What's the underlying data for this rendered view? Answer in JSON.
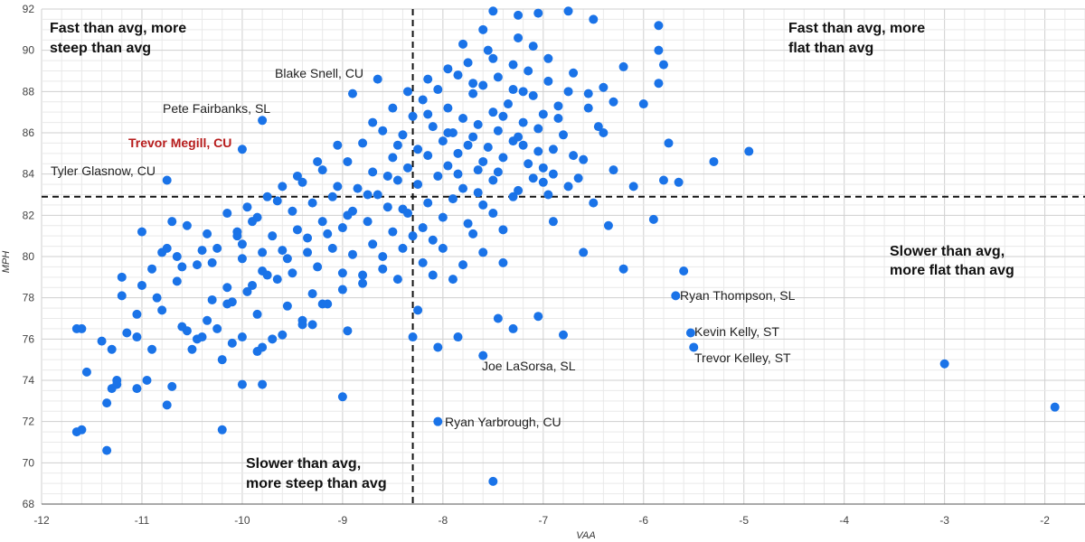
{
  "chart_data": {
    "type": "scatter",
    "title": "",
    "xlabel": "VAA",
    "ylabel": "MPH",
    "xlim": [
      -12,
      -1.6
    ],
    "ylim": [
      68,
      92
    ],
    "xticks": [
      -12,
      -11,
      -10,
      -9,
      -8,
      -7,
      -6,
      -5,
      -4,
      -3,
      -2
    ],
    "yticks": [
      68,
      70,
      72,
      74,
      76,
      78,
      80,
      82,
      84,
      86,
      88,
      90,
      92
    ],
    "grid": true,
    "point_color": "#1a73e8",
    "highlight_color": "#b71c1c",
    "reference_lines": {
      "avg_vaa": -8.3,
      "avg_mph": 82.9
    },
    "quadrant_labels": [
      {
        "lines": [
          "Fast than avg, more",
          "steep than avg"
        ]
      },
      {
        "lines": [
          "Fast than avg, more",
          "flat than avg"
        ]
      },
      {
        "lines": [
          "Slower than avg,",
          "more flat than avg"
        ]
      },
      {
        "lines": [
          "Slower than avg,",
          "more steep than avg"
        ]
      }
    ],
    "labeled_points": [
      {
        "name": "Blake Snell, CU",
        "x": -8.65,
        "y": 88.6,
        "highlight": false
      },
      {
        "name": "Pete Fairbanks, SL",
        "x": -9.8,
        "y": 86.6,
        "highlight": false
      },
      {
        "name": "Trevor Megill, CU",
        "x": -10.0,
        "y": 85.2,
        "highlight": true
      },
      {
        "name": "Tyler Glasnow, CU",
        "x": -10.75,
        "y": 83.7,
        "highlight": false
      },
      {
        "name": "Ryan Thompson, SL",
        "x": -5.68,
        "y": 78.1,
        "highlight": false
      },
      {
        "name": "Kevin Kelly, ST",
        "x": -5.53,
        "y": 76.3,
        "highlight": false
      },
      {
        "name": "Trevor Kelley, ST",
        "x": -5.5,
        "y": 75.6,
        "highlight": false
      },
      {
        "name": "Joe LaSorsa, SL",
        "x": -7.65,
        "y": 75.2,
        "highlight": false
      },
      {
        "name": "Ryan Yarbrough, CU",
        "x": -8.05,
        "y": 72.0,
        "highlight": false
      }
    ],
    "points": [
      [
        -11.65,
        76.5
      ],
      [
        -11.6,
        76.5
      ],
      [
        -11.55,
        74.4
      ],
      [
        -11.65,
        71.5
      ],
      [
        -11.4,
        75.9
      ],
      [
        -11.35,
        72.9
      ],
      [
        -11.3,
        73.6
      ],
      [
        -11.25,
        74.0
      ],
      [
        -11.25,
        73.8
      ],
      [
        -11.3,
        75.5
      ],
      [
        -11.2,
        78.1
      ],
      [
        -11.2,
        79.0
      ],
      [
        -11.15,
        76.3
      ],
      [
        -11.05,
        76.1
      ],
      [
        -11.05,
        73.6
      ],
      [
        -11.0,
        81.2
      ],
      [
        -11.0,
        78.6
      ],
      [
        -10.95,
        74.0
      ],
      [
        -10.9,
        75.5
      ],
      [
        -10.9,
        79.4
      ],
      [
        -10.8,
        80.2
      ],
      [
        -10.8,
        77.4
      ],
      [
        -10.75,
        80.4
      ],
      [
        -10.75,
        72.8
      ],
      [
        -10.7,
        81.7
      ],
      [
        -10.7,
        73.7
      ],
      [
        -10.65,
        80.0
      ],
      [
        -10.6,
        76.6
      ],
      [
        -10.6,
        79.5
      ],
      [
        -10.55,
        81.5
      ],
      [
        -10.5,
        75.5
      ],
      [
        -10.45,
        76.0
      ],
      [
        -10.4,
        76.1
      ],
      [
        -10.4,
        80.3
      ],
      [
        -10.35,
        81.1
      ],
      [
        -10.3,
        77.9
      ],
      [
        -10.3,
        79.7
      ],
      [
        -10.25,
        76.5
      ],
      [
        -10.2,
        75.0
      ],
      [
        -10.15,
        78.5
      ],
      [
        -10.15,
        82.1
      ],
      [
        -10.1,
        77.8
      ],
      [
        -10.1,
        75.8
      ],
      [
        -10.05,
        81.2
      ],
      [
        -10.0,
        79.9
      ],
      [
        -10.0,
        76.1
      ],
      [
        -10.0,
        80.6
      ],
      [
        -9.95,
        82.4
      ],
      [
        -9.9,
        78.6
      ],
      [
        -9.9,
        81.7
      ],
      [
        -9.85,
        77.2
      ],
      [
        -9.85,
        75.4
      ],
      [
        -9.8,
        80.2
      ],
      [
        -9.8,
        79.3
      ],
      [
        -9.75,
        82.9
      ],
      [
        -9.7,
        76.0
      ],
      [
        -9.7,
        81.0
      ],
      [
        -9.65,
        78.9
      ],
      [
        -9.6,
        83.4
      ],
      [
        -9.6,
        80.3
      ],
      [
        -9.55,
        77.6
      ],
      [
        -9.5,
        82.2
      ],
      [
        -9.5,
        79.2
      ],
      [
        -9.45,
        81.3
      ],
      [
        -9.4,
        76.7
      ],
      [
        -9.4,
        83.6
      ],
      [
        -9.35,
        80.9
      ],
      [
        -9.3,
        78.2
      ],
      [
        -9.3,
        82.6
      ],
      [
        -9.25,
        79.5
      ],
      [
        -9.2,
        84.2
      ],
      [
        -9.2,
        81.7
      ],
      [
        -9.15,
        77.7
      ],
      [
        -9.1,
        80.4
      ],
      [
        -9.1,
        82.9
      ],
      [
        -9.05,
        83.4
      ],
      [
        -9.0,
        79.2
      ],
      [
        -9.0,
        81.4
      ],
      [
        -8.95,
        84.6
      ],
      [
        -8.95,
        76.4
      ],
      [
        -8.9,
        82.2
      ],
      [
        -8.9,
        80.1
      ],
      [
        -8.85,
        83.3
      ],
      [
        -8.8,
        78.7
      ],
      [
        -8.8,
        85.5
      ],
      [
        -8.75,
        81.7
      ],
      [
        -8.7,
        84.1
      ],
      [
        -8.7,
        80.6
      ],
      [
        -8.65,
        83.0
      ],
      [
        -8.6,
        79.4
      ],
      [
        -8.6,
        86.1
      ],
      [
        -8.55,
        82.4
      ],
      [
        -8.5,
        84.8
      ],
      [
        -8.5,
        81.2
      ],
      [
        -8.45,
        83.7
      ],
      [
        -8.45,
        78.9
      ],
      [
        -8.4,
        85.9
      ],
      [
        -8.4,
        80.4
      ],
      [
        -8.35,
        82.1
      ],
      [
        -8.35,
        84.3
      ],
      [
        -8.3,
        86.8
      ],
      [
        -8.3,
        81.0
      ],
      [
        -8.25,
        83.5
      ],
      [
        -8.25,
        85.2
      ],
      [
        -8.2,
        79.7
      ],
      [
        -8.2,
        87.6
      ],
      [
        -8.15,
        82.6
      ],
      [
        -8.15,
        84.9
      ],
      [
        -8.1,
        86.3
      ],
      [
        -8.1,
        80.8
      ],
      [
        -8.05,
        83.9
      ],
      [
        -8.05,
        88.1
      ],
      [
        -8.0,
        85.6
      ],
      [
        -8.0,
        81.9
      ],
      [
        -7.95,
        87.2
      ],
      [
        -7.95,
        84.4
      ],
      [
        -7.9,
        86.0
      ],
      [
        -7.9,
        82.8
      ],
      [
        -7.85,
        88.8
      ],
      [
        -7.85,
        85.0
      ],
      [
        -7.8,
        83.3
      ],
      [
        -7.8,
        86.7
      ],
      [
        -7.75,
        89.4
      ],
      [
        -7.75,
        81.6
      ],
      [
        -7.7,
        85.8
      ],
      [
        -7.7,
        87.9
      ],
      [
        -7.65,
        84.2
      ],
      [
        -7.65,
        86.4
      ],
      [
        -7.6,
        88.3
      ],
      [
        -7.6,
        82.5
      ],
      [
        -7.55,
        85.3
      ],
      [
        -7.55,
        90.0
      ],
      [
        -7.5,
        87.0
      ],
      [
        -7.5,
        83.7
      ],
      [
        -7.45,
        86.1
      ],
      [
        -7.45,
        88.7
      ],
      [
        -7.4,
        84.8
      ],
      [
        -7.4,
        81.3
      ],
      [
        -7.35,
        87.4
      ],
      [
        -7.3,
        85.6
      ],
      [
        -7.3,
        89.3
      ],
      [
        -7.25,
        83.2
      ],
      [
        -7.2,
        86.5
      ],
      [
        -7.2,
        88.0
      ],
      [
        -7.15,
        84.5
      ],
      [
        -7.1,
        87.8
      ],
      [
        -7.1,
        90.2
      ],
      [
        -7.05,
        85.1
      ],
      [
        -7.0,
        86.9
      ],
      [
        -7.0,
        83.6
      ],
      [
        -6.95,
        88.5
      ],
      [
        -6.9,
        84.0
      ],
      [
        -6.85,
        87.3
      ],
      [
        -6.8,
        85.9
      ],
      [
        -6.75,
        83.4
      ],
      [
        -6.7,
        88.9
      ],
      [
        -6.6,
        84.7
      ],
      [
        -6.55,
        87.9
      ],
      [
        -6.5,
        82.6
      ],
      [
        -6.45,
        86.3
      ],
      [
        -6.4,
        88.2
      ],
      [
        -6.35,
        81.5
      ],
      [
        -6.3,
        84.2
      ],
      [
        -6.2,
        89.2
      ],
      [
        -6.1,
        83.4
      ],
      [
        -6.0,
        87.4
      ],
      [
        -5.9,
        81.8
      ],
      [
        -5.8,
        83.7
      ],
      [
        -5.75,
        85.5
      ],
      [
        -5.65,
        83.6
      ],
      [
        -5.6,
        79.3
      ],
      [
        -5.3,
        84.6
      ],
      [
        -4.95,
        85.1
      ],
      [
        -5.85,
        90.0
      ],
      [
        -5.85,
        91.2
      ],
      [
        -5.85,
        88.4
      ],
      [
        -5.8,
        89.3
      ],
      [
        -6.5,
        91.5
      ],
      [
        -6.75,
        91.9
      ],
      [
        -7.05,
        91.8
      ],
      [
        -7.25,
        91.7
      ],
      [
        -7.5,
        91.9
      ],
      [
        -7.6,
        91.0
      ],
      [
        -7.8,
        90.3
      ],
      [
        -7.25,
        90.6
      ],
      [
        -6.2,
        79.4
      ],
      [
        -6.6,
        80.2
      ],
      [
        -6.9,
        81.7
      ],
      [
        -7.4,
        79.7
      ],
      [
        -7.6,
        80.2
      ],
      [
        -7.9,
        78.9
      ],
      [
        -8.1,
        79.1
      ],
      [
        -8.25,
        77.4
      ],
      [
        -8.05,
        75.6
      ],
      [
        -7.85,
        76.1
      ],
      [
        -7.45,
        77.0
      ],
      [
        -7.3,
        76.5
      ],
      [
        -7.05,
        77.1
      ],
      [
        -6.8,
        76.2
      ],
      [
        -7.6,
        75.2
      ],
      [
        -8.3,
        76.1
      ],
      [
        -8.05,
        72.0
      ],
      [
        -7.5,
        69.1
      ],
      [
        -9.0,
        73.2
      ],
      [
        -9.3,
        76.7
      ],
      [
        -9.8,
        73.8
      ],
      [
        -10.0,
        73.8
      ],
      [
        -10.2,
        71.6
      ],
      [
        -11.35,
        70.6
      ],
      [
        -11.6,
        71.6
      ],
      [
        -5.68,
        78.1
      ],
      [
        -5.53,
        76.3
      ],
      [
        -5.5,
        75.6
      ],
      [
        -3.0,
        74.8
      ],
      [
        -1.9,
        72.7
      ],
      [
        -8.65,
        88.6
      ],
      [
        -9.8,
        86.6
      ],
      [
        -10.0,
        85.2
      ],
      [
        -10.75,
        83.7
      ],
      [
        -8.15,
        86.9
      ],
      [
        -7.95,
        86.0
      ],
      [
        -7.75,
        85.4
      ],
      [
        -7.6,
        84.6
      ],
      [
        -7.4,
        86.8
      ],
      [
        -7.2,
        85.4
      ],
      [
        -7.0,
        84.3
      ],
      [
        -6.9,
        85.2
      ],
      [
        -8.45,
        85.4
      ],
      [
        -8.55,
        83.9
      ],
      [
        -8.75,
        83.0
      ],
      [
        -8.95,
        82.0
      ],
      [
        -9.15,
        81.1
      ],
      [
        -9.35,
        80.2
      ],
      [
        -9.55,
        79.9
      ],
      [
        -9.75,
        79.1
      ],
      [
        -9.95,
        78.3
      ],
      [
        -10.15,
        77.7
      ],
      [
        -10.35,
        76.9
      ],
      [
        -10.55,
        76.4
      ],
      [
        -8.4,
        82.3
      ],
      [
        -8.2,
        81.4
      ],
      [
        -8.0,
        80.4
      ],
      [
        -7.8,
        79.6
      ],
      [
        -7.7,
        81.1
      ],
      [
        -7.5,
        82.1
      ],
      [
        -7.3,
        82.9
      ],
      [
        -7.1,
        83.8
      ],
      [
        -6.95,
        83.0
      ],
      [
        -6.7,
        84.9
      ],
      [
        -8.5,
        87.2
      ],
      [
        -8.7,
        86.5
      ],
      [
        -8.9,
        87.9
      ],
      [
        -9.05,
        85.4
      ],
      [
        -9.25,
        84.6
      ],
      [
        -9.45,
        83.9
      ],
      [
        -9.65,
        82.7
      ],
      [
        -9.85,
        81.9
      ],
      [
        -10.05,
        81.0
      ],
      [
        -10.25,
        80.4
      ],
      [
        -10.45,
        79.6
      ],
      [
        -10.65,
        78.8
      ],
      [
        -10.85,
        78.0
      ],
      [
        -11.05,
        77.2
      ],
      [
        -8.6,
        80.0
      ],
      [
        -8.8,
        79.1
      ],
      [
        -9.0,
        78.4
      ],
      [
        -9.2,
        77.7
      ],
      [
        -9.4,
        76.9
      ],
      [
        -9.6,
        76.2
      ],
      [
        -9.8,
        75.6
      ],
      [
        -7.85,
        84.0
      ],
      [
        -7.65,
        83.1
      ],
      [
        -7.45,
        84.1
      ],
      [
        -7.25,
        85.8
      ],
      [
        -7.05,
        86.2
      ],
      [
        -6.85,
        86.7
      ],
      [
        -6.65,
        83.8
      ],
      [
        -8.35,
        88.0
      ],
      [
        -8.15,
        88.6
      ],
      [
        -7.95,
        89.1
      ],
      [
        -7.7,
        88.4
      ],
      [
        -7.5,
        89.6
      ],
      [
        -7.3,
        88.1
      ],
      [
        -7.15,
        89.0
      ],
      [
        -6.95,
        89.6
      ],
      [
        -6.75,
        88.0
      ],
      [
        -6.55,
        87.2
      ],
      [
        -6.4,
        86.0
      ],
      [
        -6.3,
        87.5
      ]
    ]
  }
}
